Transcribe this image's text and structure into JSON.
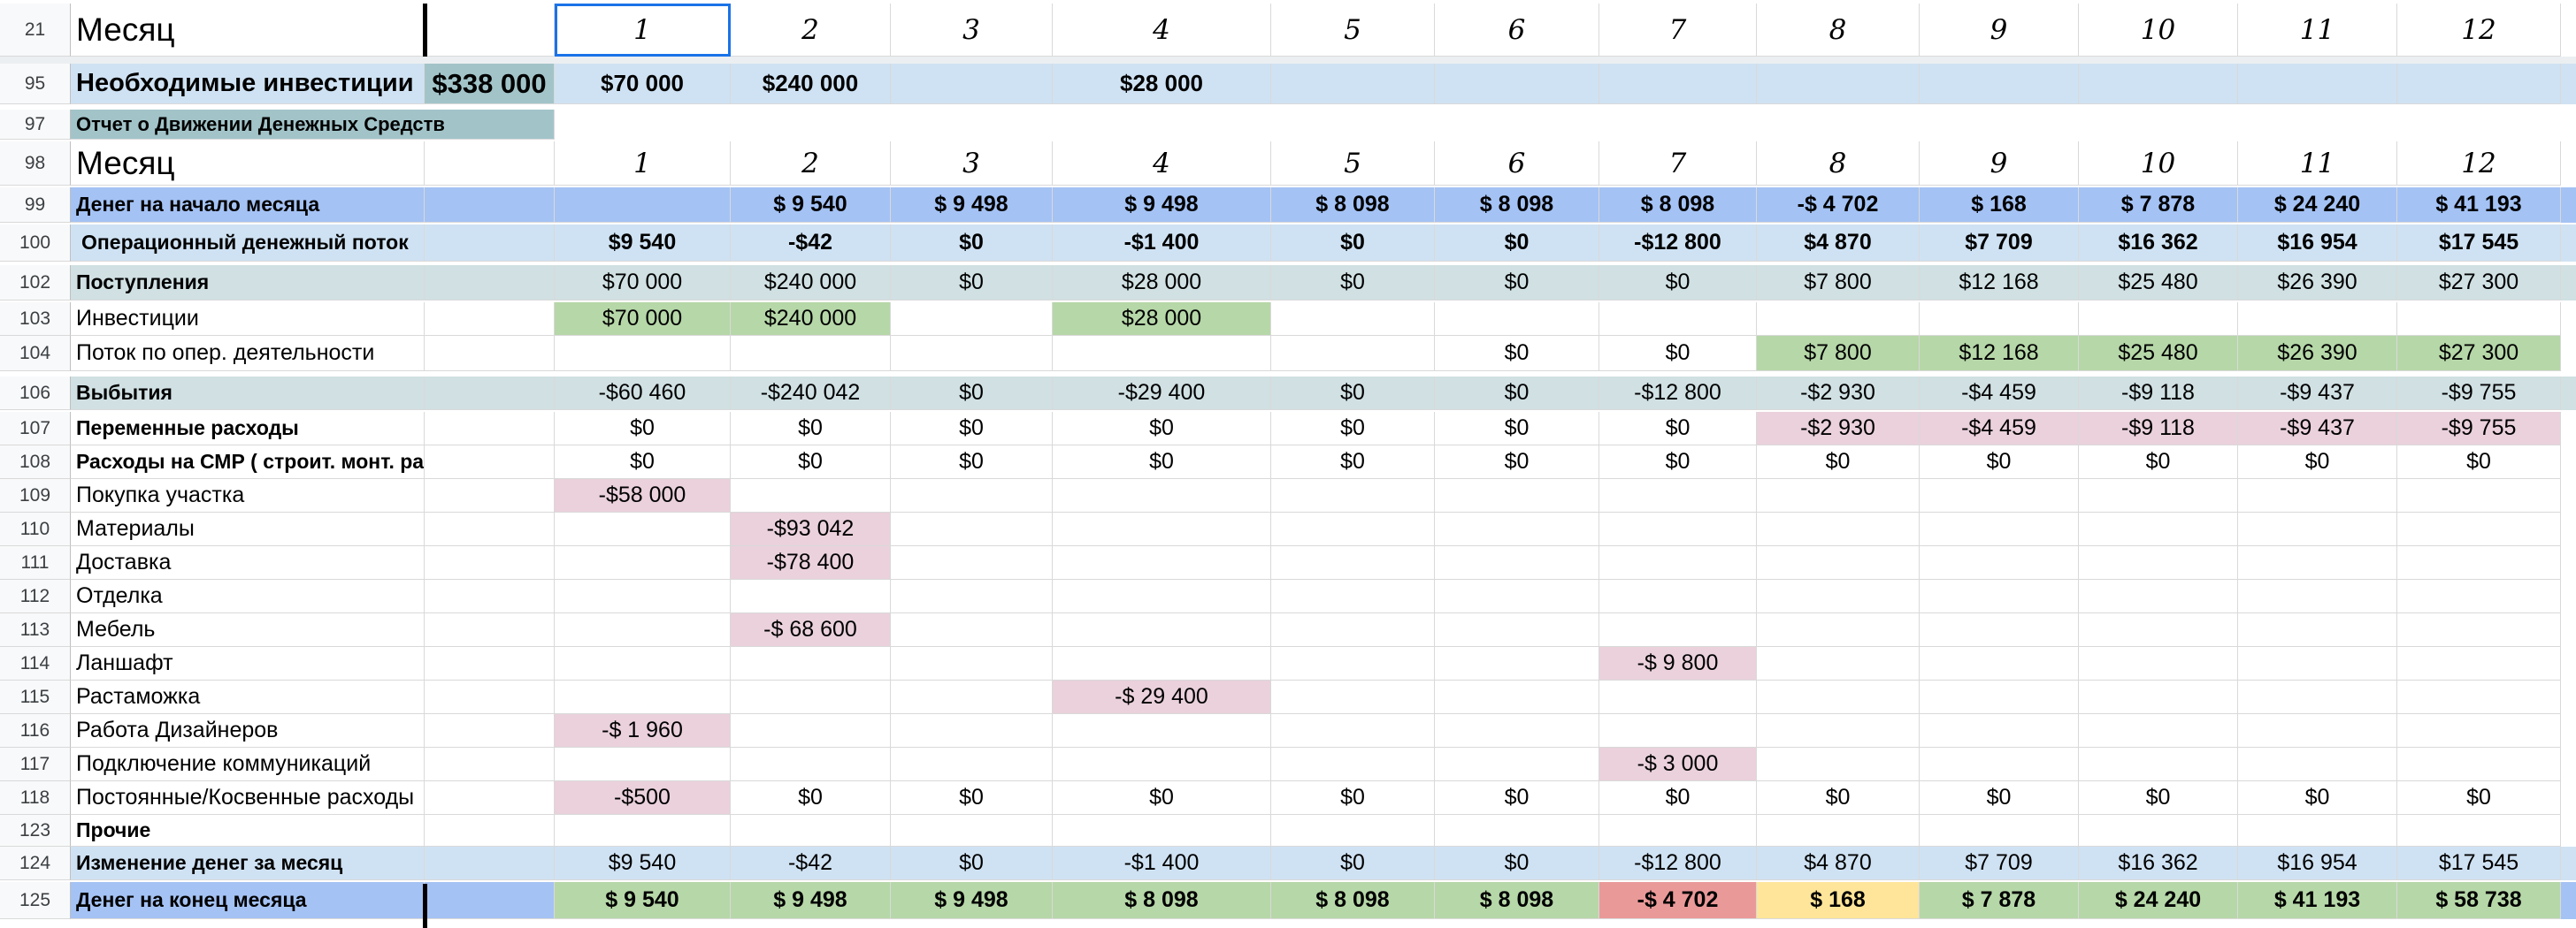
{
  "colors": {
    "blue_light": "#cfe2f3",
    "blue_mid": "#a4c2f4",
    "teal": "#d0e0e3",
    "teal_dark": "#a2c4c9",
    "green": "#b6d7a8",
    "pink": "#ead1dc",
    "red": "#ea9999",
    "yellow": "#ffe599"
  },
  "months": [
    "1",
    "2",
    "3",
    "4",
    "5",
    "6",
    "7",
    "8",
    "9",
    "10",
    "11",
    "12"
  ],
  "rows": [
    {
      "num": "21",
      "label": "Месяц",
      "kind": "header",
      "bg": "#ffffff"
    },
    {
      "num": "95",
      "label": "Необходимые инвестиции",
      "total": "$338 000",
      "kind": "invest",
      "bg": "#cfe2f3",
      "values": [
        "$70 000",
        "$240 000",
        "",
        "$28 000",
        "",
        "",
        "",
        "",
        "",
        "",
        "",
        ""
      ]
    },
    {
      "num": "97",
      "label": "Отчет о Движении Денежных Средств",
      "kind": "title",
      "bg": "#ffffff"
    },
    {
      "num": "98",
      "label": "Месяц",
      "kind": "header",
      "bg": "#ffffff"
    },
    {
      "num": "99",
      "label": "Денег на начало месяца",
      "kind": "bold",
      "bg": "#a4c2f4",
      "values": [
        "",
        "$ 9 540",
        "$ 9 498",
        "$ 9 498",
        "$ 8 098",
        "$ 8 098",
        "$ 8 098",
        "-$ 4 702",
        "$ 168",
        "$ 7 878",
        "$ 24 240",
        "$ 41 193"
      ]
    },
    {
      "num": "100",
      "label": "Операционный денежный поток",
      "kind": "bold",
      "bg": "#cfe2f3",
      "values": [
        "$9 540",
        "-$42",
        "$0",
        "-$1 400",
        "$0",
        "$0",
        "-$12 800",
        "$4 870",
        "$7 709",
        "$16 362",
        "$16 954",
        "$17 545"
      ]
    },
    {
      "num": "102",
      "label": "Поступления",
      "kind": "section",
      "bg": "#d0e0e3",
      "values": [
        "$70 000",
        "$240 000",
        "$0",
        "$28 000",
        "$0",
        "$0",
        "$0",
        "$7 800",
        "$12 168",
        "$25 480",
        "$26 390",
        "$27 300"
      ]
    },
    {
      "num": "103",
      "label": "Инвестиции",
      "kind": "plain",
      "bg": "#ffffff",
      "values": [
        "$70 000",
        "$240 000",
        "",
        "$28 000",
        "",
        "",
        "",
        "",
        "",
        "",
        "",
        ""
      ]
    },
    {
      "num": "104",
      "label": "Поток по опер. деятельности",
      "kind": "plain",
      "bg": "#ffffff",
      "values": [
        "",
        "",
        "",
        "",
        "",
        "$0",
        "$0",
        "$7 800",
        "$12 168",
        "$25 480",
        "$26 390",
        "$27 300"
      ]
    },
    {
      "num": "106",
      "label": "Выбытия",
      "kind": "section",
      "bg": "#d0e0e3",
      "values": [
        "-$60 460",
        "-$240 042",
        "$0",
        "-$29 400",
        "$0",
        "$0",
        "-$12 800",
        "-$2 930",
        "-$4 459",
        "-$9 118",
        "-$9 437",
        "-$9 755"
      ]
    },
    {
      "num": "107",
      "label": "Переменные расходы",
      "kind": "boldlabel",
      "bg": "#ffffff",
      "values": [
        "$0",
        "$0",
        "$0",
        "$0",
        "$0",
        "$0",
        "$0",
        "-$2 930",
        "-$4 459",
        "-$9 118",
        "-$9 437",
        "-$9 755"
      ]
    },
    {
      "num": "108",
      "label": "Расходы на СМР ( строит. монт. работы)",
      "kind": "boldlabel",
      "bg": "#ffffff",
      "values": [
        "$0",
        "$0",
        "$0",
        "$0",
        "$0",
        "$0",
        "$0",
        "$0",
        "$0",
        "$0",
        "$0",
        "$0"
      ]
    },
    {
      "num": "109",
      "label": "Покупка участка",
      "kind": "plain",
      "bg": "#ffffff",
      "values": [
        "-$58 000",
        "",
        "",
        "",
        "",
        "",
        "",
        "",
        "",
        "",
        "",
        ""
      ]
    },
    {
      "num": "110",
      "label": "Материалы",
      "kind": "plain",
      "bg": "#ffffff",
      "values": [
        "",
        "-$93 042",
        "",
        "",
        "",
        "",
        "",
        "",
        "",
        "",
        "",
        ""
      ]
    },
    {
      "num": "111",
      "label": "Доставка",
      "kind": "plain",
      "bg": "#ffffff",
      "values": [
        "",
        "-$78 400",
        "",
        "",
        "",
        "",
        "",
        "",
        "",
        "",
        "",
        ""
      ]
    },
    {
      "num": "112",
      "label": "Отделка",
      "kind": "plain",
      "bg": "#ffffff",
      "values": [
        "",
        "",
        "",
        "",
        "",
        "",
        "",
        "",
        "",
        "",
        "",
        ""
      ]
    },
    {
      "num": "113",
      "label": "Мебель",
      "kind": "plain",
      "bg": "#ffffff",
      "values": [
        "",
        "-$ 68 600",
        "",
        "",
        "",
        "",
        "",
        "",
        "",
        "",
        "",
        ""
      ]
    },
    {
      "num": "114",
      "label": "Ланшафт",
      "kind": "plain",
      "bg": "#ffffff",
      "values": [
        "",
        "",
        "",
        "",
        "",
        "",
        "-$ 9 800",
        "",
        "",
        "",
        "",
        ""
      ]
    },
    {
      "num": "115",
      "label": "Растаможка",
      "kind": "plain",
      "bg": "#ffffff",
      "values": [
        "",
        "",
        "",
        "-$ 29 400",
        "",
        "",
        "",
        "",
        "",
        "",
        "",
        ""
      ]
    },
    {
      "num": "116",
      "label": "Работа Дизайнеров",
      "kind": "plain",
      "bg": "#ffffff",
      "values": [
        "-$ 1 960",
        "",
        "",
        "",
        "",
        "",
        "",
        "",
        "",
        "",
        "",
        ""
      ]
    },
    {
      "num": "117",
      "label": "Подключение коммуникаций",
      "kind": "plain",
      "bg": "#ffffff",
      "values": [
        "",
        "",
        "",
        "",
        "",
        "",
        "-$ 3 000",
        "",
        "",
        "",
        "",
        ""
      ]
    },
    {
      "num": "118",
      "label": "Постоянные/Косвенные расходы",
      "kind": "plain",
      "bg": "#ffffff",
      "values": [
        "-$500",
        "$0",
        "$0",
        "$0",
        "$0",
        "$0",
        "$0",
        "$0",
        "$0",
        "$0",
        "$0",
        "$0"
      ]
    },
    {
      "num": "123",
      "label": "Прочие",
      "kind": "boldlabel",
      "bg": "#ffffff",
      "values": [
        "",
        "",
        "",
        "",
        "",
        "",
        "",
        "",
        "",
        "",
        "",
        ""
      ]
    },
    {
      "num": "124",
      "label": "Изменение денег за месяц",
      "kind": "boldlabel",
      "bg": "#cfe2f3",
      "values": [
        "$9 540",
        "-$42",
        "$0",
        "-$1 400",
        "$0",
        "$0",
        "-$12 800",
        "$4 870",
        "$7 709",
        "$16 362",
        "$16 954",
        "$17 545"
      ]
    },
    {
      "num": "125",
      "label": "Денег на конец месяца",
      "kind": "bold",
      "bg": "#a4c2f4",
      "values": [
        "$ 9 540",
        "$ 9 498",
        "$ 9 498",
        "$ 8 098",
        "$ 8 098",
        "$ 8 098",
        "-$ 4 702",
        "$ 168",
        "$ 7 878",
        "$ 24 240",
        "$ 41 193",
        "$ 58 738"
      ]
    }
  ],
  "cell_colors": {
    "95": [
      "#cfe2f3",
      "#cfe2f3",
      "#cfe2f3",
      "#cfe2f3",
      "#cfe2f3",
      "#cfe2f3",
      "#cfe2f3",
      "#cfe2f3",
      "#cfe2f3",
      "#cfe2f3",
      "#cfe2f3",
      "#cfe2f3"
    ],
    "103": [
      "#b6d7a8",
      "#b6d7a8",
      "",
      "#b6d7a8",
      "",
      "",
      "",
      "",
      "",
      "",
      "",
      ""
    ],
    "104": [
      "",
      "",
      "",
      "",
      "",
      "",
      "",
      "#b6d7a8",
      "#b6d7a8",
      "#b6d7a8",
      "#b6d7a8",
      "#b6d7a8"
    ],
    "107": [
      "",
      "",
      "",
      "",
      "",
      "",
      "",
      "#ead1dc",
      "#ead1dc",
      "#ead1dc",
      "#ead1dc",
      "#ead1dc"
    ],
    "109": [
      "#ead1dc",
      "",
      "",
      "",
      "",
      "",
      "",
      "",
      "",
      "",
      "",
      ""
    ],
    "110": [
      "",
      "#ead1dc",
      "",
      "",
      "",
      "",
      "",
      "",
      "",
      "",
      "",
      ""
    ],
    "111": [
      "",
      "#ead1dc",
      "",
      "",
      "",
      "",
      "",
      "",
      "",
      "",
      "",
      ""
    ],
    "113": [
      "",
      "#ead1dc",
      "",
      "",
      "",
      "",
      "",
      "",
      "",
      "",
      "",
      ""
    ],
    "114": [
      "",
      "",
      "",
      "",
      "",
      "",
      "#ead1dc",
      "",
      "",
      "",
      "",
      ""
    ],
    "115": [
      "",
      "",
      "",
      "#ead1dc",
      "",
      "",
      "",
      "",
      "",
      "",
      "",
      ""
    ],
    "116": [
      "#ead1dc",
      "",
      "",
      "",
      "",
      "",
      "",
      "",
      "",
      "",
      "",
      ""
    ],
    "117": [
      "",
      "",
      "",
      "",
      "",
      "",
      "#ead1dc",
      "",
      "",
      "",
      "",
      ""
    ],
    "118": [
      "#ead1dc",
      "",
      "",
      "",
      "",
      "",
      "",
      "",
      "",
      "",
      "",
      ""
    ],
    "125": [
      "#b6d7a8",
      "#b6d7a8",
      "#b6d7a8",
      "#b6d7a8",
      "#b6d7a8",
      "#b6d7a8",
      "#ea9999",
      "#ffe599",
      "#b6d7a8",
      "#b6d7a8",
      "#b6d7a8",
      "#b6d7a8"
    ]
  }
}
